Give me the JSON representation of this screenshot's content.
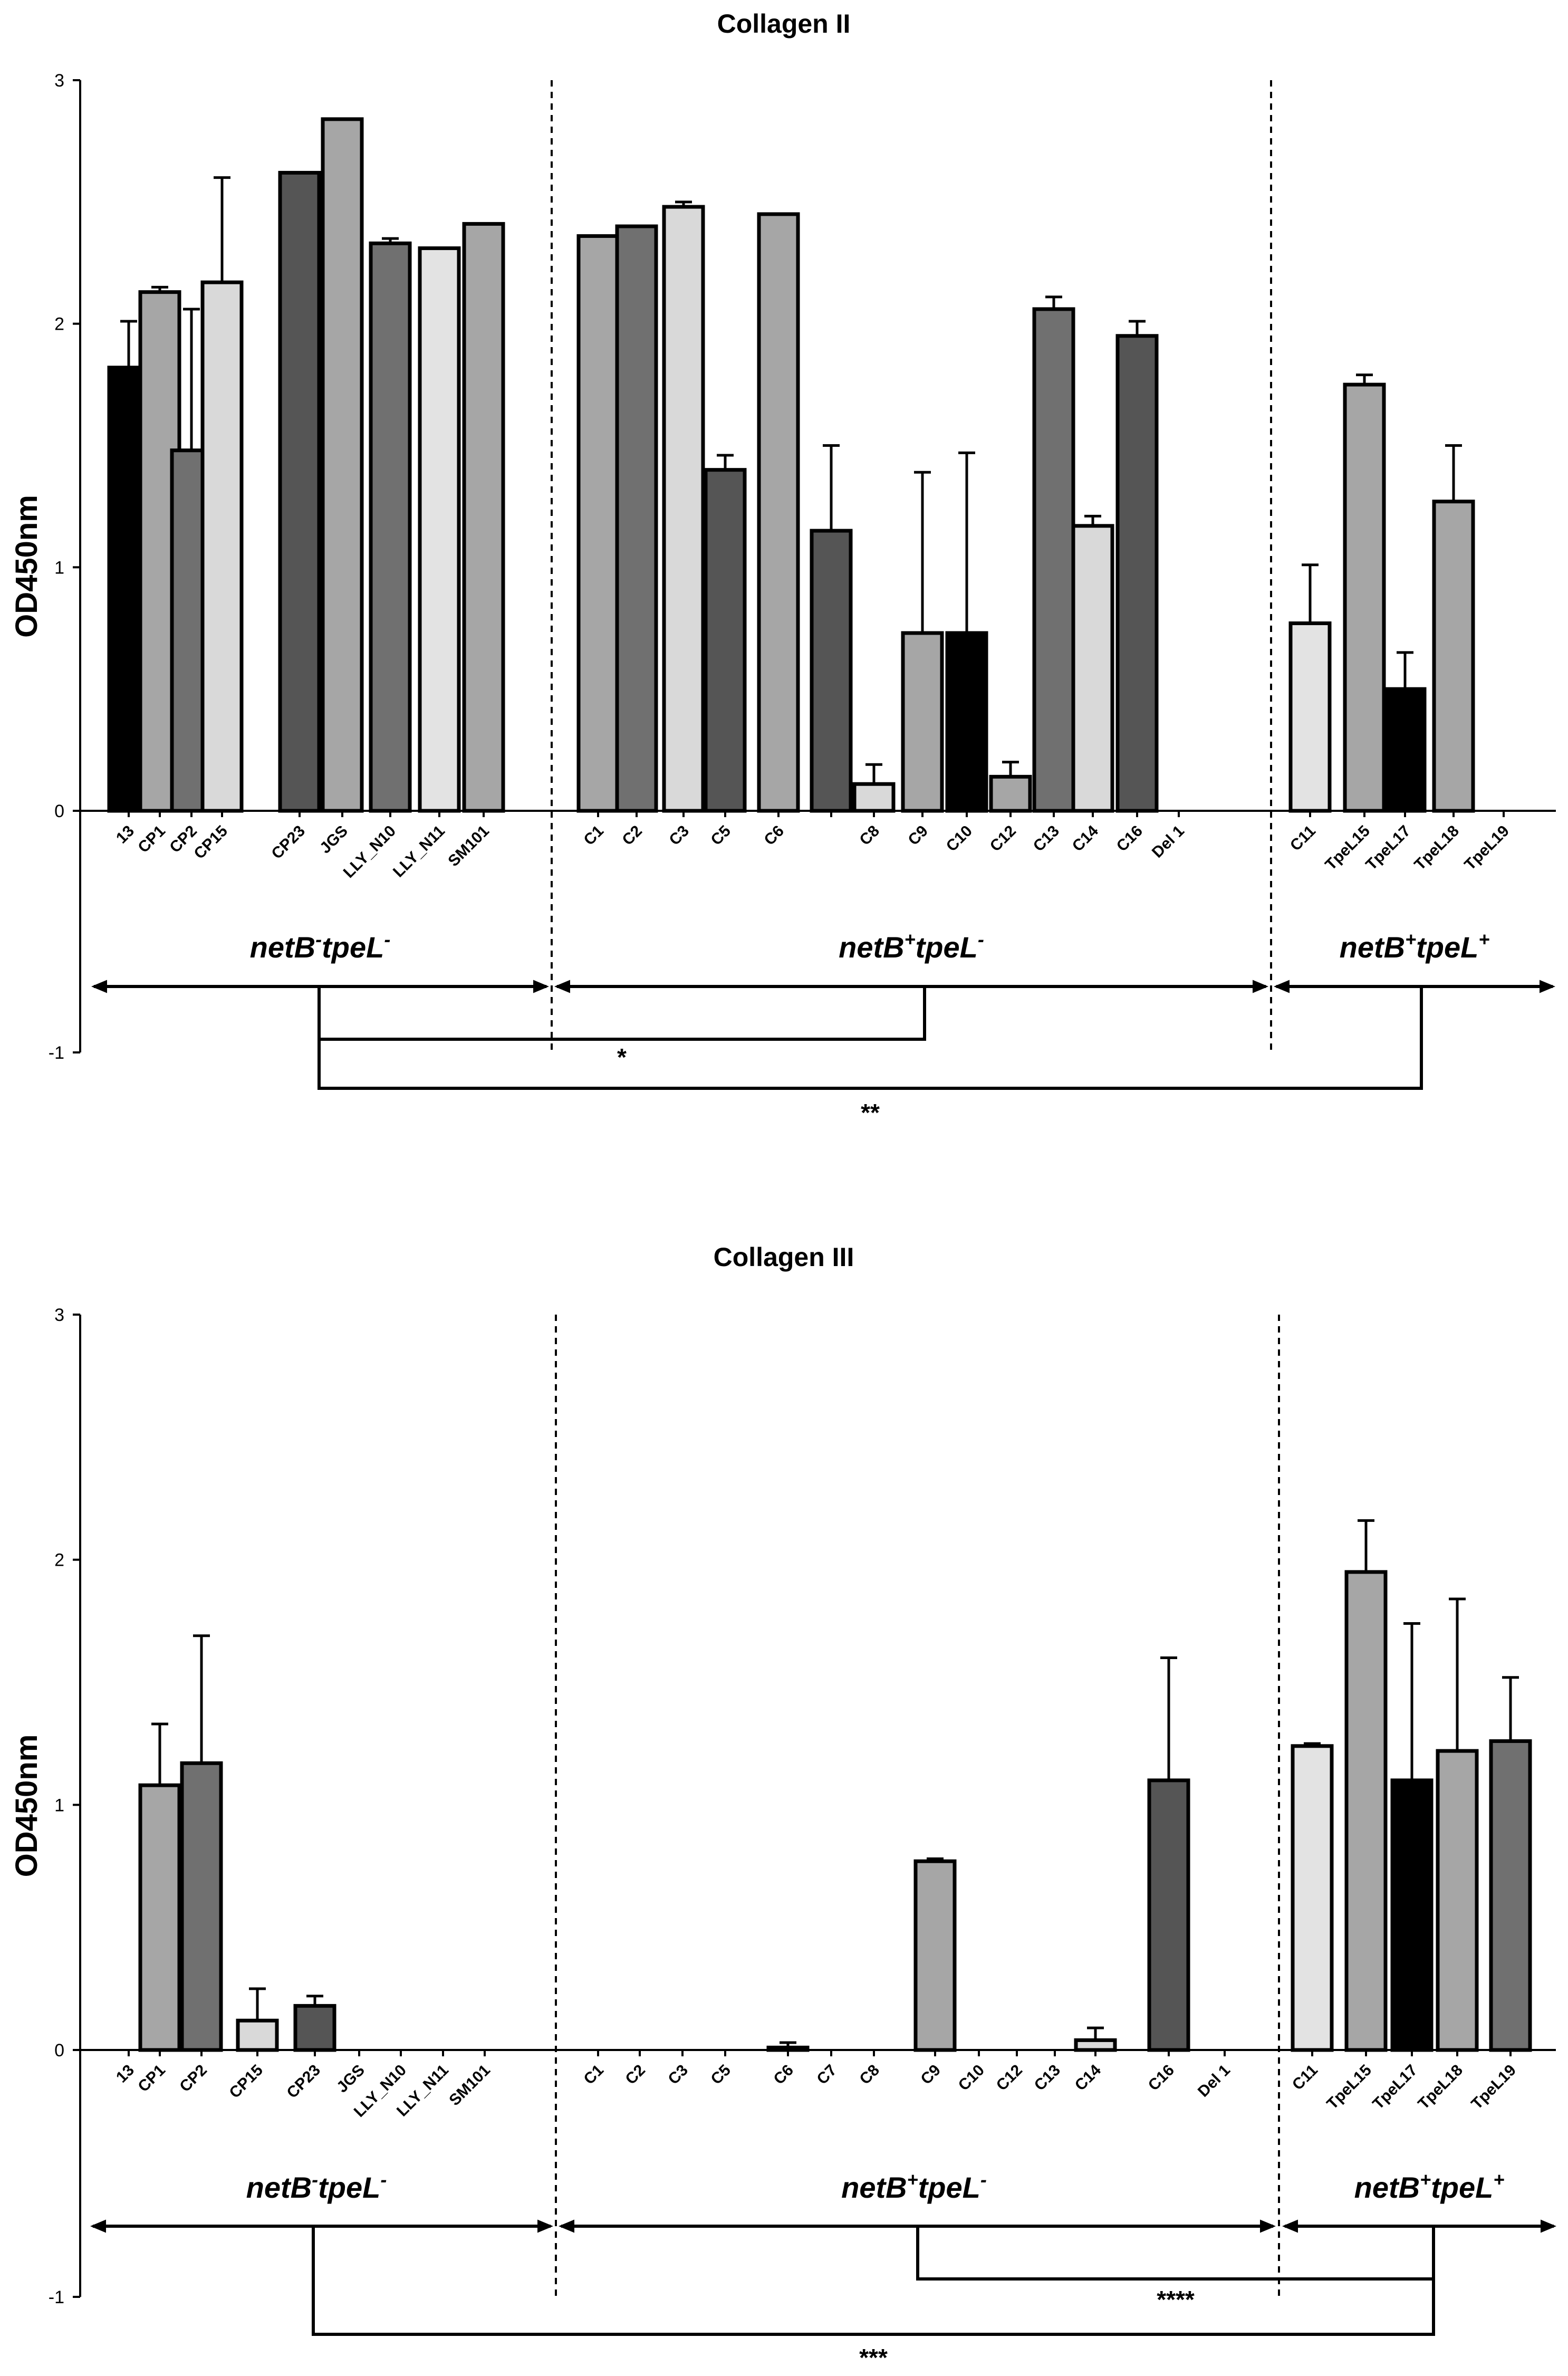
{
  "chart_data": [
    {
      "type": "bar",
      "title": "Collagen II",
      "ylabel": "OD450nm",
      "xlabel": "",
      "ylim": [
        -1,
        3
      ],
      "yticks": [
        "-1",
        "0",
        "1",
        "2",
        "3"
      ],
      "group_labels": [
        {
          "gene1": "netB",
          "sup1": "-",
          "gene2": "tpeL",
          "sup2": "-"
        },
        {
          "gene1": "netB",
          "sup1": "+",
          "gene2": "tpeL",
          "sup2": "-"
        },
        {
          "gene1": "netB",
          "sup1": "+",
          "gene2": "tpeL",
          "sup2": "+"
        }
      ],
      "significance": [
        "*",
        "**"
      ],
      "groups": [
        {
          "bars": [
            {
              "label": "13",
              "value": 1.82,
              "error": 0.19,
              "color": "#000000"
            },
            {
              "label": "CP1",
              "value": 2.13,
              "error": 0.02,
              "color": "#a6a6a6"
            },
            {
              "label": "CP2",
              "value": 1.48,
              "error": 0.58,
              "color": "#707070"
            },
            {
              "label": "CP15",
              "value": 2.17,
              "error": 0.43,
              "color": "#d9d9d9"
            },
            {
              "label": "CP23",
              "value": 2.62,
              "error": 0,
              "color": "#555555"
            },
            {
              "label": "JGS",
              "value": 2.84,
              "error": 0,
              "color": "#a6a6a6"
            },
            {
              "label": "LLY_N10",
              "value": 2.33,
              "error": 0.02,
              "color": "#707070"
            },
            {
              "label": "LLY_N11",
              "value": 2.31,
              "error": 0,
              "color": "#e3e3e3"
            },
            {
              "label": "SM101",
              "value": 2.41,
              "error": 0,
              "color": "#a6a6a6"
            }
          ]
        },
        {
          "bars": [
            {
              "label": "C1",
              "value": 2.36,
              "error": 0,
              "color": "#a6a6a6"
            },
            {
              "label": "C2",
              "value": 2.4,
              "error": 0,
              "color": "#707070"
            },
            {
              "label": "C3",
              "value": 2.48,
              "error": 0.02,
              "color": "#d9d9d9"
            },
            {
              "label": "C5",
              "value": 1.4,
              "error": 0.06,
              "color": "#555555"
            },
            {
              "label": "C6",
              "value": 2.45,
              "error": 0,
              "color": "#a6a6a6"
            },
            {
              "label": "",
              "value": 1.15,
              "error": 0.35,
              "color": "#555555"
            },
            {
              "label": "C8",
              "value": 0.11,
              "error": 0.08,
              "color": "#d9d9d9"
            },
            {
              "label": "C9",
              "value": 0.73,
              "error": 0.66,
              "color": "#a6a6a6"
            },
            {
              "label": "C10",
              "value": 0.73,
              "error": 0.74,
              "color": "#000000"
            },
            {
              "label": "C12",
              "value": 0.14,
              "error": 0.06,
              "color": "#a6a6a6"
            },
            {
              "label": "C13",
              "value": 2.06,
              "error": 0.05,
              "color": "#707070"
            },
            {
              "label": "C14",
              "value": 1.17,
              "error": 0.04,
              "color": "#d9d9d9"
            },
            {
              "label": "C16",
              "value": 1.95,
              "error": 0.06,
              "color": "#555555"
            },
            {
              "label": "Del 1",
              "value": 0,
              "error": 0,
              "color": "#a6a6a6"
            }
          ]
        },
        {
          "bars": [
            {
              "label": "C11",
              "value": 0.77,
              "error": 0.24,
              "color": "#e3e3e3"
            },
            {
              "label": "TpeL15",
              "value": 1.75,
              "error": 0.04,
              "color": "#a6a6a6"
            },
            {
              "label": "TpeL17",
              "value": 0.5,
              "error": 0.15,
              "color": "#000000"
            },
            {
              "label": "TpeL18",
              "value": 1.27,
              "error": 0.23,
              "color": "#a6a6a6"
            },
            {
              "label": "TpeL19",
              "value": 0,
              "error": 0,
              "color": "#707070"
            }
          ]
        }
      ]
    },
    {
      "type": "bar",
      "title": "Collagen III",
      "ylabel": "OD450nm",
      "xlabel": "",
      "ylim": [
        -1,
        3
      ],
      "yticks": [
        "-1",
        "0",
        "1",
        "2",
        "3"
      ],
      "group_labels": [
        {
          "gene1": "netB",
          "sup1": "-",
          "gene2": "tpeL",
          "sup2": "-"
        },
        {
          "gene1": "netB",
          "sup1": "+",
          "gene2": "tpeL",
          "sup2": "-"
        },
        {
          "gene1": "netB",
          "sup1": "+",
          "gene2": "tpeL",
          "sup2": "+"
        }
      ],
      "significance": [
        "****",
        "***"
      ],
      "groups": [
        {
          "bars": [
            {
              "label": "13",
              "value": 0,
              "error": 0,
              "color": "#000000"
            },
            {
              "label": "CP1",
              "value": 1.08,
              "error": 0.25,
              "color": "#a6a6a6"
            },
            {
              "label": "CP2",
              "value": 1.17,
              "error": 0.52,
              "color": "#707070"
            },
            {
              "label": "CP15",
              "value": 0.12,
              "error": 0.13,
              "color": "#d9d9d9"
            },
            {
              "label": "CP23",
              "value": 0.18,
              "error": 0.04,
              "color": "#555555"
            },
            {
              "label": "JGS",
              "value": 0,
              "error": 0,
              "color": "#a6a6a6"
            },
            {
              "label": "LLY_N10",
              "value": 0,
              "error": 0,
              "color": "#707070"
            },
            {
              "label": "LLY_N11",
              "value": 0,
              "error": 0,
              "color": "#e3e3e3"
            },
            {
              "label": "SM101",
              "value": 0,
              "error": 0,
              "color": "#a6a6a6"
            }
          ]
        },
        {
          "bars": [
            {
              "label": "C1",
              "value": 0,
              "error": 0,
              "color": "#a6a6a6"
            },
            {
              "label": "C2",
              "value": 0,
              "error": 0,
              "color": "#707070"
            },
            {
              "label": "C3",
              "value": 0,
              "error": 0,
              "color": "#d9d9d9"
            },
            {
              "label": "C5",
              "value": 0,
              "error": 0,
              "color": "#555555"
            },
            {
              "label": "C6",
              "value": 0.01,
              "error": 0.02,
              "color": "#a6a6a6"
            },
            {
              "label": "C7",
              "value": 0,
              "error": 0,
              "color": "#707070"
            },
            {
              "label": "C8",
              "value": 0,
              "error": 0,
              "color": "#d9d9d9"
            },
            {
              "label": "C9",
              "value": 0.77,
              "error": 0.01,
              "color": "#a6a6a6"
            },
            {
              "label": "C10",
              "value": 0,
              "error": 0,
              "color": "#000000"
            },
            {
              "label": "C12",
              "value": 0,
              "error": 0,
              "color": "#a6a6a6"
            },
            {
              "label": "C13",
              "value": 0,
              "error": 0,
              "color": "#707070"
            },
            {
              "label": "C14",
              "value": 0.04,
              "error": 0.05,
              "color": "#d9d9d9"
            },
            {
              "label": "C16",
              "value": 1.1,
              "error": 0.5,
              "color": "#555555"
            },
            {
              "label": "Del 1",
              "value": 0,
              "error": 0,
              "color": "#a6a6a6"
            }
          ]
        },
        {
          "bars": [
            {
              "label": "C11",
              "value": 1.24,
              "error": 0.01,
              "color": "#e3e3e3"
            },
            {
              "label": "TpeL15",
              "value": 1.95,
              "error": 0.21,
              "color": "#a6a6a6"
            },
            {
              "label": "TpeL17",
              "value": 1.1,
              "error": 0.64,
              "color": "#000000"
            },
            {
              "label": "TpeL18",
              "value": 1.22,
              "error": 0.62,
              "color": "#a6a6a6"
            },
            {
              "label": "TpeL19",
              "value": 1.26,
              "error": 0.26,
              "color": "#707070"
            }
          ]
        }
      ]
    }
  ]
}
